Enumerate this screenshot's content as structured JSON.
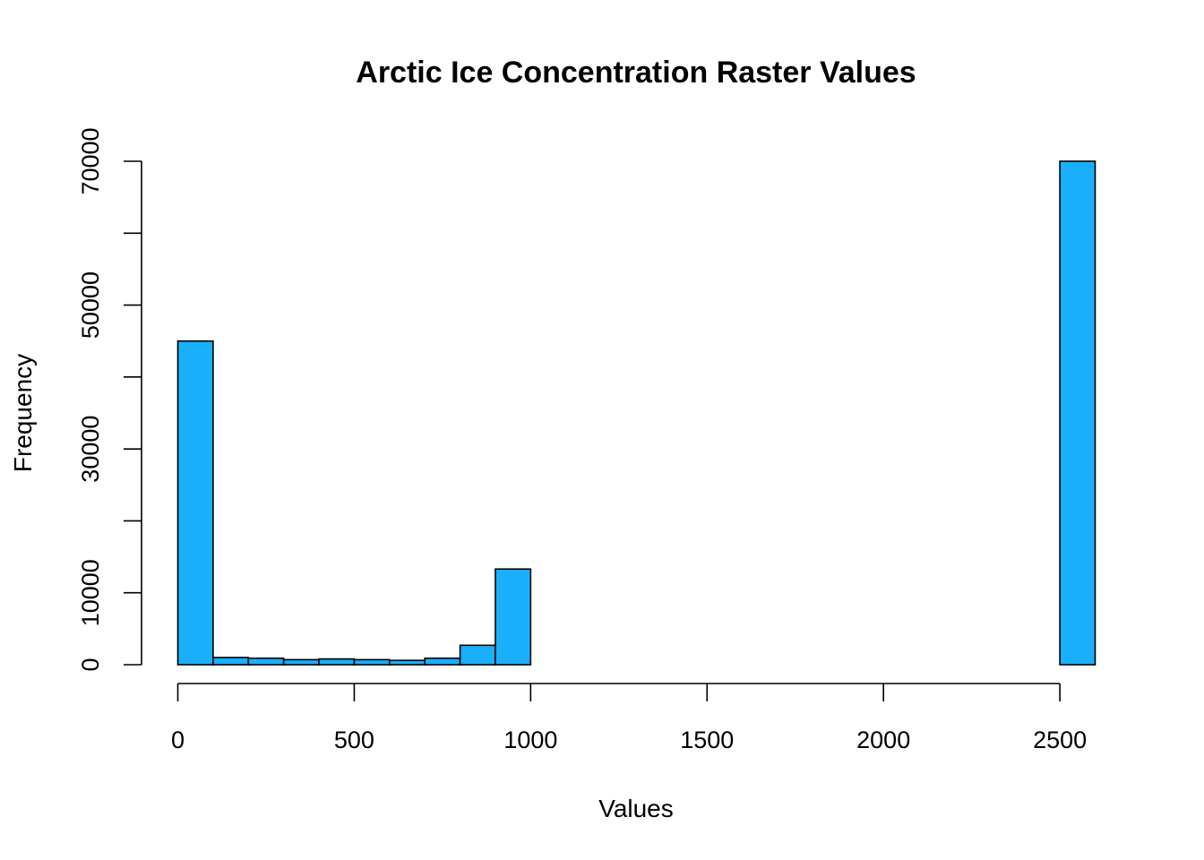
{
  "chart_data": {
    "type": "bar",
    "title": "Arctic Ice Concentration Raster Values",
    "xlabel": "Values",
    "ylabel": "Frequency",
    "bin_width": 100,
    "bins": [
      {
        "start": 0,
        "end": 100,
        "count": 45000
      },
      {
        "start": 100,
        "end": 200,
        "count": 1000
      },
      {
        "start": 200,
        "end": 300,
        "count": 900
      },
      {
        "start": 300,
        "end": 400,
        "count": 700
      },
      {
        "start": 400,
        "end": 500,
        "count": 800
      },
      {
        "start": 500,
        "end": 600,
        "count": 700
      },
      {
        "start": 600,
        "end": 700,
        "count": 600
      },
      {
        "start": 700,
        "end": 800,
        "count": 900
      },
      {
        "start": 800,
        "end": 900,
        "count": 2700
      },
      {
        "start": 900,
        "end": 1000,
        "count": 13300
      },
      {
        "start": 1000,
        "end": 1100,
        "count": 0
      },
      {
        "start": 1100,
        "end": 1200,
        "count": 0
      },
      {
        "start": 1200,
        "end": 1300,
        "count": 0
      },
      {
        "start": 1300,
        "end": 1400,
        "count": 0
      },
      {
        "start": 1400,
        "end": 1500,
        "count": 0
      },
      {
        "start": 1500,
        "end": 1600,
        "count": 0
      },
      {
        "start": 1600,
        "end": 1700,
        "count": 0
      },
      {
        "start": 1700,
        "end": 1800,
        "count": 0
      },
      {
        "start": 1800,
        "end": 1900,
        "count": 0
      },
      {
        "start": 1900,
        "end": 2000,
        "count": 0
      },
      {
        "start": 2000,
        "end": 2100,
        "count": 0
      },
      {
        "start": 2100,
        "end": 2200,
        "count": 0
      },
      {
        "start": 2200,
        "end": 2300,
        "count": 0
      },
      {
        "start": 2300,
        "end": 2400,
        "count": 0
      },
      {
        "start": 2400,
        "end": 2500,
        "count": 0
      },
      {
        "start": 2500,
        "end": 2600,
        "count": 70000
      }
    ],
    "xlim": [
      0,
      2600
    ],
    "ylim": [
      0,
      70000
    ],
    "x_ticks": [
      0,
      500,
      1000,
      1500,
      2000,
      2500
    ],
    "x_tick_labels": [
      "0",
      "500",
      "1000",
      "1500",
      "2000",
      "2500"
    ],
    "y_ticks": [
      0,
      10000,
      20000,
      30000,
      40000,
      50000,
      60000,
      70000
    ],
    "y_tick_labels": [
      "0",
      "10000",
      "30000",
      "50000",
      "70000"
    ],
    "y_labeled_ticks": [
      0,
      10000,
      30000,
      50000,
      70000
    ],
    "bar_color": "#1aaffa",
    "bar_edge_color": "#000000",
    "grid": false,
    "legend": "none"
  }
}
